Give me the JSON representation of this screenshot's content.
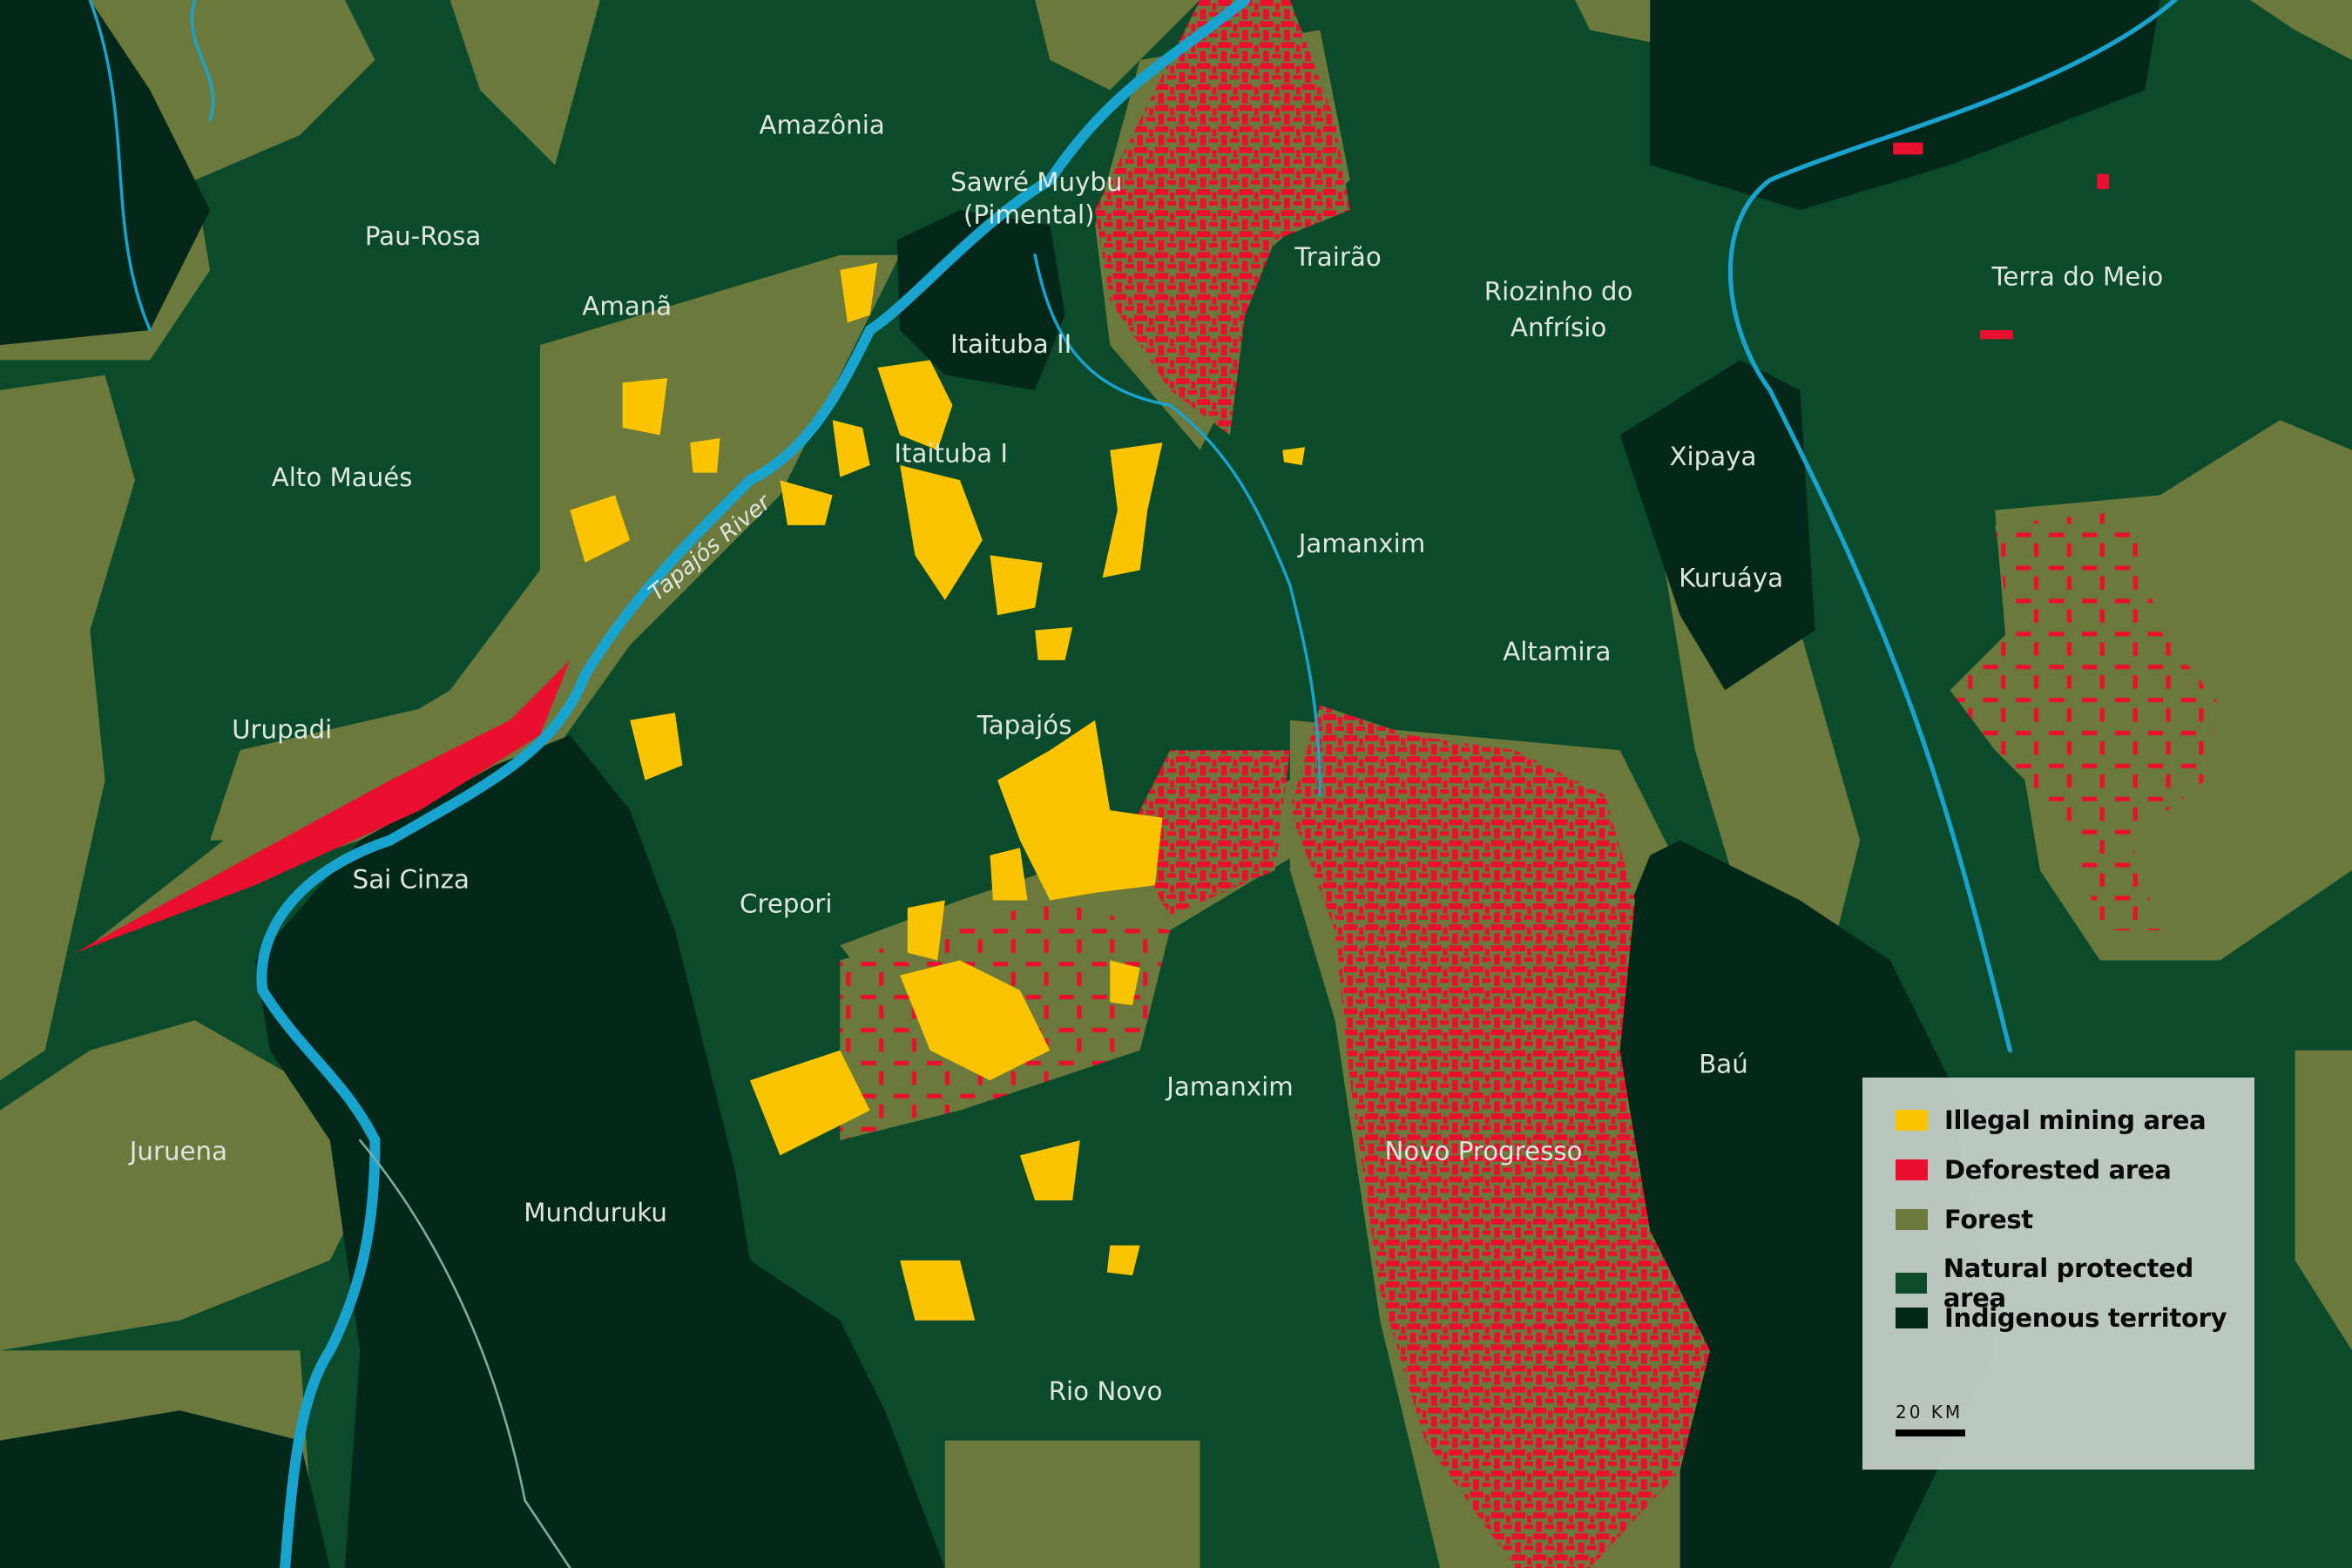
{
  "colors": {
    "natural_protected_area": "#0b4a2a",
    "forest": "#6b7a3c",
    "indigenous_territory": "#03281a",
    "river": "#19a3cf",
    "deforested_area": "#ea0f2f",
    "illegal_mining_area": "#fbc400",
    "label": "#dfe6df"
  },
  "labels": {
    "amazonia": "Amazônia",
    "pau_rosa": "Pau-Rosa",
    "amana": "Amanã",
    "sawre_muybu": "Sawré Muybu",
    "pimental": "(Pimental)",
    "trairao": "Trairão",
    "riozinho_1": "Riozinho do",
    "riozinho_2": "Anfrísio",
    "terra_do_meio": "Terra do Meio",
    "itaituba_ii": "Itaituba II",
    "itaituba_i": "Itaituba I",
    "alto_maues": "Alto Maués",
    "xipaya": "Xipaya",
    "jamanxim_north": "Jamanxim",
    "kuruaya": "Kuruáya",
    "altamira": "Altamira",
    "tapajos_river": "Tapajós River",
    "tapajos": "Tapajós",
    "urupadi": "Urupadi",
    "sai_cinza": "Sai Cinza",
    "crepori": "Crepori",
    "bau": "Baú",
    "jamanxim_south": "Jamanxim",
    "novo_progresso": "Novo Progresso",
    "juruena": "Juruena",
    "munduruku": "Munduruku",
    "rio_novo": "Rio Novo"
  },
  "legend": {
    "items": [
      {
        "label": "Illegal mining area",
        "color": "#fbc400"
      },
      {
        "label": "Deforested area",
        "color": "#ea0f2f"
      },
      {
        "label": "Forest",
        "color": "#6b7a3c"
      },
      {
        "label": "Natural protected area",
        "color": "#0b4a2a"
      },
      {
        "label": "Indigenous territory",
        "color": "#03281a"
      }
    ],
    "scale_label": "20 KM"
  }
}
